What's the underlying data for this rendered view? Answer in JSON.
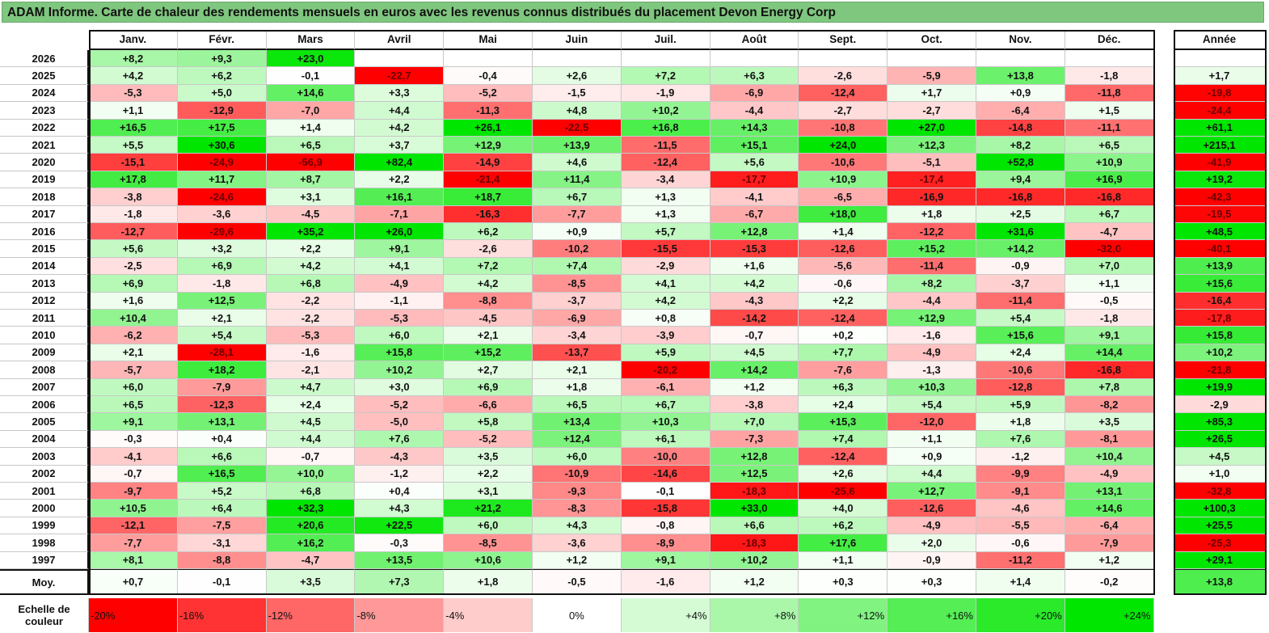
{
  "title": "ADAM Informe. Carte de chaleur des rendements mensuels en euros avec les revenus connus distribués du placement Devon Energy Corp",
  "months": [
    "Janv.",
    "Févr.",
    "Mars",
    "Avril",
    "Mai",
    "Juin",
    "Juil.",
    "Août",
    "Sept.",
    "Oct.",
    "Nov.",
    "Déc."
  ],
  "annual_header": "Année",
  "colors": {
    "negative": "#ff0000",
    "neutral": "#ffffff",
    "positive": "#00ff00",
    "title_bg": "#7fc77f"
  },
  "rows": [
    {
      "year": "2026",
      "values": [
        "+8,2",
        "+9,3",
        "+23,0",
        "",
        "",
        "",
        "",
        "",
        "",
        "",
        "",
        ""
      ],
      "annual": ""
    },
    {
      "year": "2025",
      "values": [
        "+4,2",
        "+6,2",
        "-0,1",
        "-22,7",
        "-0,4",
        "+2,6",
        "+7,2",
        "+6,3",
        "-2,6",
        "-5,9",
        "+13,8",
        "-1,8"
      ],
      "annual": "+1,7"
    },
    {
      "year": "2024",
      "values": [
        "-5,3",
        "+5,0",
        "+14,6",
        "+3,3",
        "-5,2",
        "-1,5",
        "-1,9",
        "-6,9",
        "-12,4",
        "+1,7",
        "+0,9",
        "-11,8"
      ],
      "annual": "-19,8"
    },
    {
      "year": "2023",
      "values": [
        "+1,1",
        "-12,9",
        "-7,0",
        "+4,4",
        "-11,3",
        "+4,8",
        "+10,2",
        "-4,4",
        "-2,7",
        "-2,7",
        "-6,4",
        "+1,5"
      ],
      "annual": "-24,4"
    },
    {
      "year": "2022",
      "values": [
        "+16,5",
        "+17,5",
        "+1,4",
        "+4,2",
        "+26,1",
        "-22,5",
        "+16,8",
        "+14,3",
        "-10,8",
        "+27,0",
        "-14,8",
        "-11,1"
      ],
      "annual": "+61,1"
    },
    {
      "year": "2021",
      "values": [
        "+5,5",
        "+30,6",
        "+6,5",
        "+3,7",
        "+12,9",
        "+13,9",
        "-11,5",
        "+15,1",
        "+24,0",
        "+12,3",
        "+8,2",
        "+6,5"
      ],
      "annual": "+215,1"
    },
    {
      "year": "2020",
      "values": [
        "-15,1",
        "-24,9",
        "-56,9",
        "+82,4",
        "-14,9",
        "+4,6",
        "-12,4",
        "+5,6",
        "-10,6",
        "-5,1",
        "+52,8",
        "+10,9"
      ],
      "annual": "-41,9"
    },
    {
      "year": "2019",
      "values": [
        "+17,8",
        "+11,7",
        "+8,7",
        "+2,2",
        "-21,4",
        "+11,4",
        "-3,4",
        "-17,7",
        "+10,9",
        "-17,4",
        "+9,4",
        "+16,9"
      ],
      "annual": "+19,2"
    },
    {
      "year": "2018",
      "values": [
        "-3,8",
        "-24,6",
        "+3,1",
        "+16,1",
        "+18,7",
        "+6,7",
        "+1,3",
        "-4,1",
        "-6,5",
        "-16,9",
        "-16,8",
        "-16,8"
      ],
      "annual": "-42,3"
    },
    {
      "year": "2017",
      "values": [
        "-1,8",
        "-3,6",
        "-4,5",
        "-7,1",
        "-16,3",
        "-7,7",
        "+1,3",
        "-6,7",
        "+18,0",
        "+1,8",
        "+2,5",
        "+6,7"
      ],
      "annual": "-19,5"
    },
    {
      "year": "2016",
      "values": [
        "-12,7",
        "-29,6",
        "+35,2",
        "+26,0",
        "+6,2",
        "+0,9",
        "+5,7",
        "+12,8",
        "+1,4",
        "-12,2",
        "+31,6",
        "-4,7"
      ],
      "annual": "+48,5"
    },
    {
      "year": "2015",
      "values": [
        "+5,6",
        "+3,2",
        "+2,2",
        "+9,1",
        "-2,6",
        "-10,2",
        "-15,5",
        "-15,3",
        "-12,6",
        "+15,2",
        "+14,2",
        "-32,0"
      ],
      "annual": "-40,1"
    },
    {
      "year": "2014",
      "values": [
        "-2,5",
        "+6,9",
        "+4,2",
        "+4,1",
        "+7,2",
        "+7,4",
        "-2,9",
        "+1,6",
        "-5,6",
        "-11,4",
        "-0,9",
        "+7,0"
      ],
      "annual": "+13,9"
    },
    {
      "year": "2013",
      "values": [
        "+6,9",
        "-1,8",
        "+6,8",
        "-4,9",
        "+4,2",
        "-8,5",
        "+4,1",
        "+4,2",
        "-0,6",
        "+8,2",
        "-3,7",
        "+1,1"
      ],
      "annual": "+15,6"
    },
    {
      "year": "2012",
      "values": [
        "+1,6",
        "+12,5",
        "-2,2",
        "-1,1",
        "-8,8",
        "-3,7",
        "+4,2",
        "-4,3",
        "+2,2",
        "-4,4",
        "-11,4",
        "-0,5"
      ],
      "annual": "-16,4"
    },
    {
      "year": "2011",
      "values": [
        "+10,4",
        "+2,1",
        "-2,2",
        "-5,3",
        "-4,5",
        "-6,9",
        "+0,8",
        "-14,2",
        "-12,4",
        "+12,9",
        "+5,4",
        "-1,8"
      ],
      "annual": "-17,8"
    },
    {
      "year": "2010",
      "values": [
        "-6,2",
        "+5,4",
        "-5,3",
        "+6,0",
        "+2,1",
        "-3,4",
        "-3,9",
        "-0,7",
        "+0,2",
        "-1,6",
        "+15,6",
        "+9,1"
      ],
      "annual": "+15,8"
    },
    {
      "year": "2009",
      "values": [
        "+2,1",
        "-28,1",
        "-1,6",
        "+15,8",
        "+15,2",
        "-13,7",
        "+5,9",
        "+4,5",
        "+7,7",
        "-4,9",
        "+2,4",
        "+14,4"
      ],
      "annual": "+10,2"
    },
    {
      "year": "2008",
      "values": [
        "-5,7",
        "+18,2",
        "-2,1",
        "+10,2",
        "+2,7",
        "+2,1",
        "-20,2",
        "+14,2",
        "-7,6",
        "-1,3",
        "-10,6",
        "-16,8"
      ],
      "annual": "-21,8"
    },
    {
      "year": "2007",
      "values": [
        "+6,0",
        "-7,9",
        "+4,7",
        "+3,0",
        "+6,9",
        "+1,8",
        "-6,1",
        "+1,2",
        "+6,3",
        "+10,3",
        "-12,8",
        "+7,8"
      ],
      "annual": "+19,9"
    },
    {
      "year": "2006",
      "values": [
        "+6,5",
        "-12,3",
        "+2,4",
        "-5,2",
        "-6,6",
        "+6,5",
        "+6,7",
        "-3,8",
        "+2,4",
        "+5,4",
        "+5,9",
        "-8,2"
      ],
      "annual": "-2,9"
    },
    {
      "year": "2005",
      "values": [
        "+9,1",
        "+13,1",
        "+4,5",
        "-5,0",
        "+5,8",
        "+13,4",
        "+10,3",
        "+7,0",
        "+15,3",
        "-12,0",
        "+1,8",
        "+3,5"
      ],
      "annual": "+85,3"
    },
    {
      "year": "2004",
      "values": [
        "-0,3",
        "+0,4",
        "+4,4",
        "+7,6",
        "-5,2",
        "+12,4",
        "+6,1",
        "-7,3",
        "+7,4",
        "+1,1",
        "+7,6",
        "-8,1"
      ],
      "annual": "+26,5"
    },
    {
      "year": "2003",
      "values": [
        "-4,1",
        "+6,6",
        "-0,7",
        "-4,3",
        "+3,5",
        "+6,0",
        "-10,0",
        "+12,8",
        "-12,4",
        "+0,9",
        "-1,2",
        "+10,4"
      ],
      "annual": "+4,5"
    },
    {
      "year": "2002",
      "values": [
        "-0,7",
        "+16,5",
        "+10,0",
        "-1,2",
        "+2,2",
        "-10,9",
        "-14,6",
        "+12,5",
        "+2,6",
        "+4,4",
        "-9,9",
        "-4,9"
      ],
      "annual": "+1,0"
    },
    {
      "year": "2001",
      "values": [
        "-9,7",
        "+5,2",
        "+6,8",
        "+0,4",
        "+3,1",
        "-9,3",
        "-0,1",
        "-18,3",
        "-25,6",
        "+12,7",
        "-9,1",
        "+13,1"
      ],
      "annual": "-32,8"
    },
    {
      "year": "2000",
      "values": [
        "+10,5",
        "+6,4",
        "+32,3",
        "+4,3",
        "+21,2",
        "-8,3",
        "-15,8",
        "+33,0",
        "+4,0",
        "-12,6",
        "-4,6",
        "+14,6"
      ],
      "annual": "+100,3"
    },
    {
      "year": "1999",
      "values": [
        "-12,1",
        "-7,5",
        "+20,6",
        "+22,5",
        "+6,0",
        "+4,3",
        "-0,8",
        "+6,6",
        "+6,2",
        "-4,9",
        "-5,5",
        "-6,4"
      ],
      "annual": "+25,5"
    },
    {
      "year": "1998",
      "values": [
        "-7,7",
        "-3,1",
        "+16,2",
        "-0,3",
        "-8,5",
        "-3,6",
        "-8,9",
        "-18,3",
        "+17,6",
        "+2,0",
        "-0,6",
        "-7,9"
      ],
      "annual": "-25,3"
    },
    {
      "year": "1997",
      "values": [
        "+8,1",
        "-8,8",
        "-4,7",
        "+13,5",
        "+10,6",
        "+1,2",
        "+9,1",
        "+10,2",
        "+1,1",
        "-0,9",
        "-11,2",
        "+1,2"
      ],
      "annual": "+29,1"
    }
  ],
  "average": {
    "label": "Moy.",
    "values": [
      "+0,7",
      "-0,1",
      "+3,5",
      "+7,3",
      "+1,8",
      "-0,5",
      "-1,6",
      "+1,2",
      "+0,3",
      "+0,3",
      "+1,4",
      "-0,2"
    ],
    "annual": "+13,8"
  },
  "legend": {
    "label_line1": "Echelle de",
    "label_line2": "couleur",
    "steps": [
      {
        "label": "-20%",
        "value": -20
      },
      {
        "label": "-16%",
        "value": -16
      },
      {
        "label": "-12%",
        "value": -12
      },
      {
        "label": "-8%",
        "value": -8
      },
      {
        "label": "-4%",
        "value": -4
      },
      {
        "label": "0%",
        "value": 0
      },
      {
        "label": "+4%",
        "value": 4
      },
      {
        "label": "+8%",
        "value": 8
      },
      {
        "label": "+12%",
        "value": 12
      },
      {
        "label": "+16%",
        "value": 16
      },
      {
        "label": "+20%",
        "value": 20
      },
      {
        "label": "+24%",
        "value": 24
      }
    ]
  }
}
